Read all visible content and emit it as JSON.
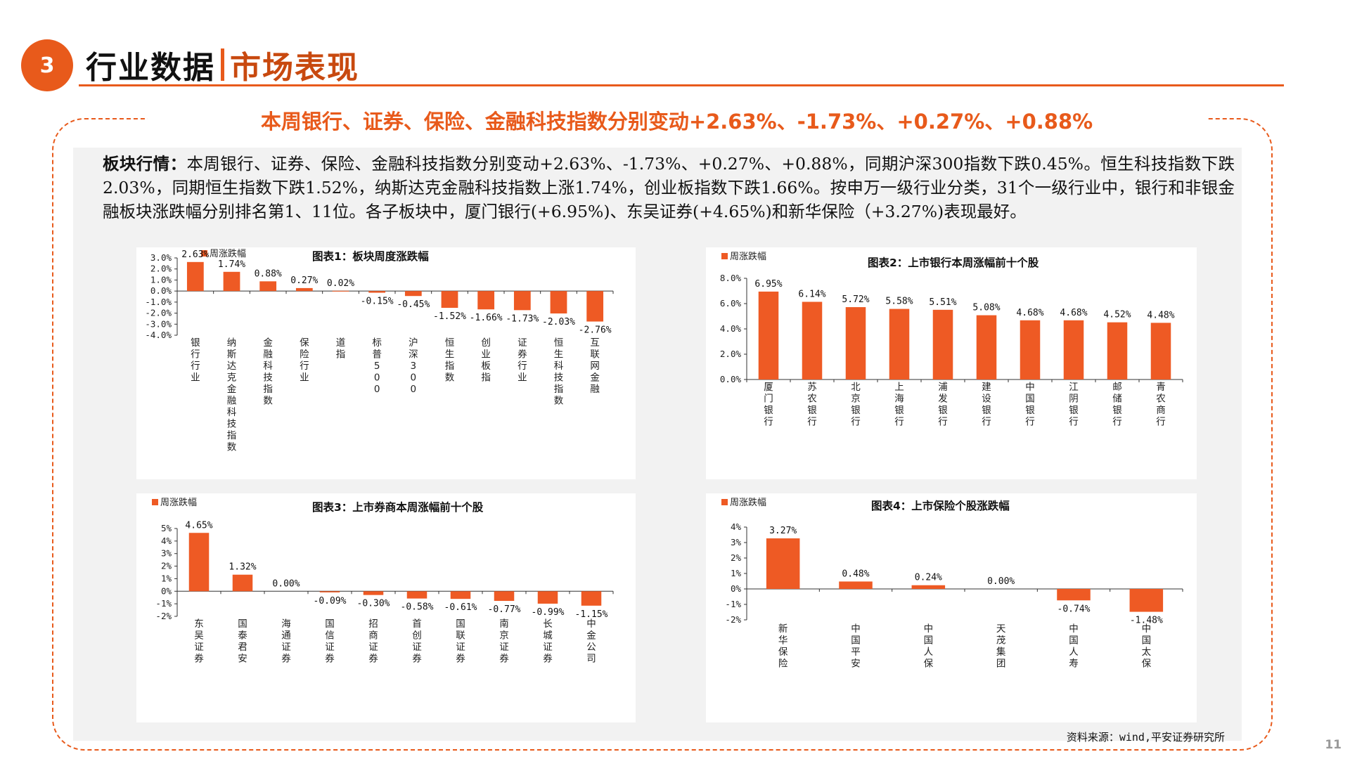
{
  "header": {
    "section_number": "3",
    "title_part1": "行业数据",
    "title_part2": "市场表现"
  },
  "headline": "本周银行、证券、保险、金融科技指数分别变动+2.63%、-1.73%、+0.27%、+0.88%",
  "summary": {
    "label": "板块行情：",
    "text": "本周银行、证券、保险、金融科技指数分别变动+2.63%、-1.73%、+0.27%、+0.88%，同期沪深300指数下跌0.45%。恒生科技指数下跌2.03%，同期恒生指数下跌1.52%，纳斯达克金融科技指数上涨1.74%，创业板指数下跌1.66%。按申万一级行业分类，31个一级行业中，银行和非银金融板块涨跌幅分别排名第1、11位。各子板块中，厦门银行(+6.95%)、东吴证券(+4.65%)和新华保险（+3.27%)表现最好。"
  },
  "colors": {
    "accent": "#e85a1b",
    "bar": "#ee5a24"
  },
  "chart_data": [
    {
      "type": "bar",
      "title": "图表1：板块周度涨跌幅",
      "legend": "周涨跌幅",
      "categories": [
        "银行行业",
        "纳斯达克金融科技指数",
        "金融科技指数",
        "保险行业",
        "道指",
        "标普500",
        "沪深300",
        "恒生指数",
        "创业板指",
        "证券行业",
        "恒生科技指数",
        "互联网金融"
      ],
      "values": [
        2.63,
        1.74,
        0.88,
        0.27,
        0.02,
        -0.15,
        -0.45,
        -1.52,
        -1.66,
        -1.73,
        -2.03,
        -2.76
      ],
      "value_labels": [
        "2.63%",
        "1.74%",
        "0.88%",
        "0.27%",
        "0.02%",
        "-0.15%",
        "-0.45%",
        "-1.52%",
        "-1.66%",
        "-1.73%",
        "-2.03%",
        "-2.76%"
      ],
      "ylim": [
        -4,
        3
      ],
      "yticks": [
        "3.0%",
        "2.0%",
        "1.0%",
        "0.0%",
        "-1.0%",
        "-2.0%",
        "-3.0%",
        "-4.0%"
      ]
    },
    {
      "type": "bar",
      "title": "图表2：上市银行本周涨幅前十个股",
      "legend": "周涨跌幅",
      "categories": [
        "厦门银行",
        "苏农银行",
        "北京银行",
        "上海银行",
        "浦发银行",
        "建设银行",
        "中国银行",
        "江阴银行",
        "邮储银行",
        "青农商行"
      ],
      "values": [
        6.95,
        6.14,
        5.72,
        5.58,
        5.51,
        5.08,
        4.68,
        4.68,
        4.52,
        4.48
      ],
      "value_labels": [
        "6.95%",
        "6.14%",
        "5.72%",
        "5.58%",
        "5.51%",
        "5.08%",
        "4.68%",
        "4.68%",
        "4.52%",
        "4.48%"
      ],
      "ylim": [
        0,
        8
      ],
      "yticks": [
        "8.0%",
        "6.0%",
        "4.0%",
        "2.0%",
        "0.0%"
      ]
    },
    {
      "type": "bar",
      "title": "图表3：上市券商本周涨幅前十个股",
      "legend": "周涨跌幅",
      "categories": [
        "东吴证券",
        "国泰君安",
        "海通证券",
        "国信证券",
        "招商证券",
        "首创证券",
        "国联证券",
        "南京证券",
        "长城证券",
        "中金公司"
      ],
      "values": [
        4.65,
        1.32,
        0.0,
        -0.09,
        -0.3,
        -0.58,
        -0.61,
        -0.77,
        -0.99,
        -1.15
      ],
      "value_labels": [
        "4.65%",
        "1.32%",
        "0.00%",
        "-0.09%",
        "-0.30%",
        "-0.58%",
        "-0.61%",
        "-0.77%",
        "-0.99%",
        "-1.15%"
      ],
      "ylim": [
        -2,
        5
      ],
      "yticks": [
        "5%",
        "4%",
        "3%",
        "2%",
        "1%",
        "0%",
        "-1%",
        "-2%"
      ]
    },
    {
      "type": "bar",
      "title": "图表4：上市保险个股涨跌幅",
      "legend": "周涨跌幅",
      "categories": [
        "新华保险",
        "中国平安",
        "中国人保",
        "天茂集团",
        "中国人寿",
        "中国太保"
      ],
      "values": [
        3.27,
        0.48,
        0.24,
        0.0,
        -0.74,
        -1.48
      ],
      "value_labels": [
        "3.27%",
        "0.48%",
        "0.24%",
        "0.00%",
        "-0.74%",
        "-1.48%"
      ],
      "ylim": [
        -2,
        4
      ],
      "yticks": [
        "4%",
        "3%",
        "2%",
        "1%",
        "0%",
        "-1%",
        "-2%"
      ]
    }
  ],
  "source": "资料来源：wind,平安证券研究所",
  "page_number": "11"
}
